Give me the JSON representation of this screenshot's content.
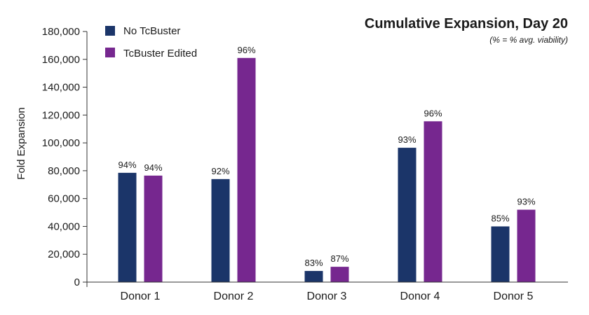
{
  "chart_data": {
    "type": "bar",
    "title": "Cumulative Expansion, Day 20",
    "subtitle": "(% = % avg. viability)",
    "xlabel": "",
    "ylabel": "Fold Expansion",
    "ylim": [
      0,
      180000
    ],
    "yticks": [
      0,
      20000,
      40000,
      60000,
      80000,
      100000,
      120000,
      140000,
      160000,
      180000
    ],
    "ytick_labels": [
      "0",
      "20,000",
      "40,000",
      "60,000",
      "80,000",
      "100,000",
      "120,000",
      "140,000",
      "160,000",
      "180,000"
    ],
    "categories": [
      "Donor 1",
      "Donor 2",
      "Donor 3",
      "Donor 4",
      "Donor 5"
    ],
    "legend_position": "top-left",
    "grid": false,
    "series": [
      {
        "name": "No TcBuster",
        "color": "#1b3569",
        "values": [
          78500,
          74000,
          8000,
          96500,
          40000
        ],
        "labels": [
          "94%",
          "92%",
          "83%",
          "93%",
          "85%"
        ]
      },
      {
        "name": "TcBuster Edited",
        "color": "#76278f",
        "values": [
          76500,
          161000,
          11000,
          115500,
          52000
        ],
        "labels": [
          "94%",
          "96%",
          "87%",
          "96%",
          "93%"
        ]
      }
    ]
  }
}
